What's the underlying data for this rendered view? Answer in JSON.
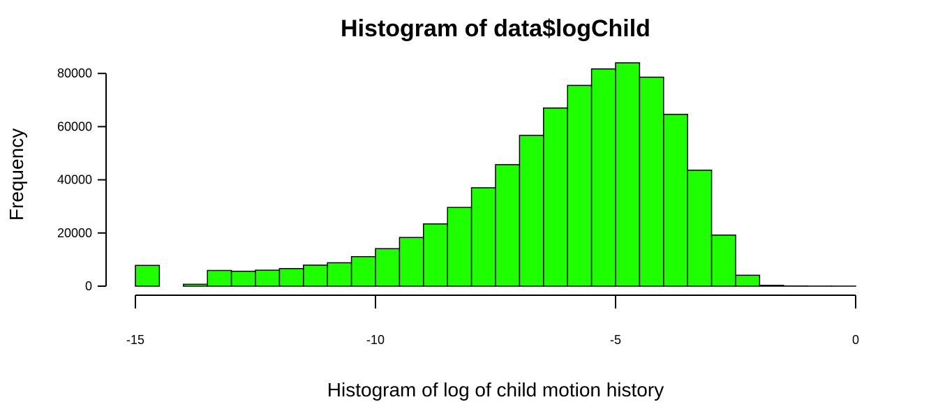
{
  "chart_data": {
    "type": "bar",
    "title": "Histogram of data$logChild",
    "xlabel": "Histogram of log of child motion history",
    "ylabel": "Frequency",
    "bar_color": "#1EFF00",
    "bin_width": 0.5,
    "bin_starts": [
      -15,
      -14.5,
      -14,
      -13.5,
      -13,
      -12.5,
      -12,
      -11.5,
      -11,
      -10.5,
      -10,
      -9.5,
      -9,
      -8.5,
      -8,
      -7.5,
      -7,
      -6.5,
      -6,
      -5.5,
      -5,
      -4.5,
      -4,
      -3.5,
      -3,
      -2.5,
      -2,
      -1.5,
      -1,
      -0.5
    ],
    "values": [
      7800,
      0,
      700,
      5900,
      5600,
      6000,
      6600,
      7900,
      8800,
      11100,
      14100,
      18300,
      23400,
      29600,
      37000,
      45700,
      56700,
      67000,
      75500,
      81700,
      84000,
      78600,
      64600,
      43600,
      19200,
      4100,
      300,
      50,
      20,
      10
    ],
    "xlim": [
      -15,
      0
    ],
    "ylim": [
      0,
      84000
    ],
    "x_ticks": [
      -15,
      -10,
      -5,
      0
    ],
    "y_ticks": [
      0,
      20000,
      40000,
      60000,
      80000
    ],
    "x_tick_labels": [
      "-15",
      "-10",
      "-5",
      "0"
    ],
    "y_tick_labels": [
      "0",
      "20000",
      "40000",
      "60000",
      "80000"
    ],
    "grid": false
  }
}
